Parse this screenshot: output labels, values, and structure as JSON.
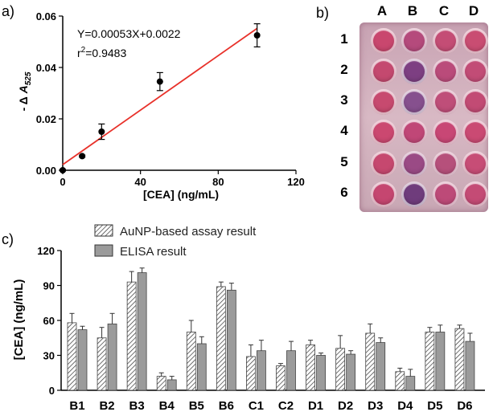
{
  "panels": {
    "a": "a)",
    "b": "b)",
    "c": "c)"
  },
  "chart_data": [
    {
      "type": "scatter",
      "panel": "a",
      "xlabel": "[CEA] (ng/mL)",
      "ylabel": "- Δ A525",
      "ylabel_prefix": "- Δ ",
      "ylabel_main": "A",
      "ylabel_sub": "525",
      "xlim": [
        0,
        120
      ],
      "ylim": [
        0,
        0.06
      ],
      "xticks": [
        "0",
        "40",
        "80",
        "120"
      ],
      "yticks": [
        "0.00",
        "0.02",
        "0.04",
        "0.06"
      ],
      "points": [
        {
          "x": 0,
          "y": 0.0,
          "err": 0.0003
        },
        {
          "x": 10,
          "y": 0.0055,
          "err": 0.0004
        },
        {
          "x": 20,
          "y": 0.015,
          "err": 0.003
        },
        {
          "x": 50,
          "y": 0.0345,
          "err": 0.0035
        },
        {
          "x": 100,
          "y": 0.0525,
          "err": 0.0045
        }
      ],
      "fit": {
        "slope": 0.00053,
        "intercept": 0.0022,
        "x_range": [
          0,
          100
        ],
        "color": "#e8312a"
      },
      "equation": "Y=0.00053X+0.0022",
      "r2_prefix": "r",
      "r2_sup": "2",
      "r2_value": "=0.9483"
    },
    {
      "type": "bar",
      "panel": "c",
      "ylabel": "[CEA] (ng/mL)",
      "ylim": [
        0,
        120
      ],
      "yticks": [
        "0",
        "30",
        "60",
        "90",
        "120"
      ],
      "categories": [
        "B1",
        "B2",
        "B3",
        "B4",
        "B5",
        "B6",
        "C1",
        "C2",
        "D1",
        "D2",
        "D3",
        "D4",
        "D5",
        "D6"
      ],
      "series": [
        {
          "name": "AuNP-based assay result",
          "pattern": "hatched",
          "values": [
            58,
            45,
            93,
            12,
            50,
            89,
            29,
            21,
            39,
            36,
            49,
            16,
            50,
            53
          ],
          "errors": [
            8,
            9,
            9,
            3,
            10,
            4,
            10,
            2,
            4,
            11,
            8,
            3,
            4,
            3
          ]
        },
        {
          "name": "ELISA result",
          "pattern": "solid",
          "color": "#9b9b9b",
          "values": [
            52,
            57,
            101,
            9,
            40,
            86,
            34,
            34,
            30,
            31,
            41,
            12,
            50,
            42
          ],
          "errors": [
            3,
            9,
            4,
            3,
            6,
            6,
            9,
            8,
            2,
            3,
            4,
            6,
            6,
            7
          ]
        }
      ]
    }
  ],
  "plate": {
    "columns": [
      "A",
      "B",
      "C",
      "D"
    ],
    "rows": [
      "1",
      "2",
      "3",
      "4",
      "5",
      "6"
    ],
    "well_colors": [
      [
        "#c9476e",
        "#b54a7c",
        "#c44d75",
        "#c94d72"
      ],
      [
        "#c4496f",
        "#7d3f82",
        "#ba4b7a",
        "#c24c76"
      ],
      [
        "#c74a6f",
        "#86508e",
        "#bf4e79",
        "#c24b74"
      ],
      [
        "#cb4870",
        "#c04777",
        "#c84775",
        "#ca4a73"
      ],
      [
        "#c6486f",
        "#9a4a85",
        "#b6507b",
        "#c74d76"
      ],
      [
        "#c54670",
        "#6f3c7c",
        "#bd4a78",
        "#c44b75"
      ]
    ]
  }
}
